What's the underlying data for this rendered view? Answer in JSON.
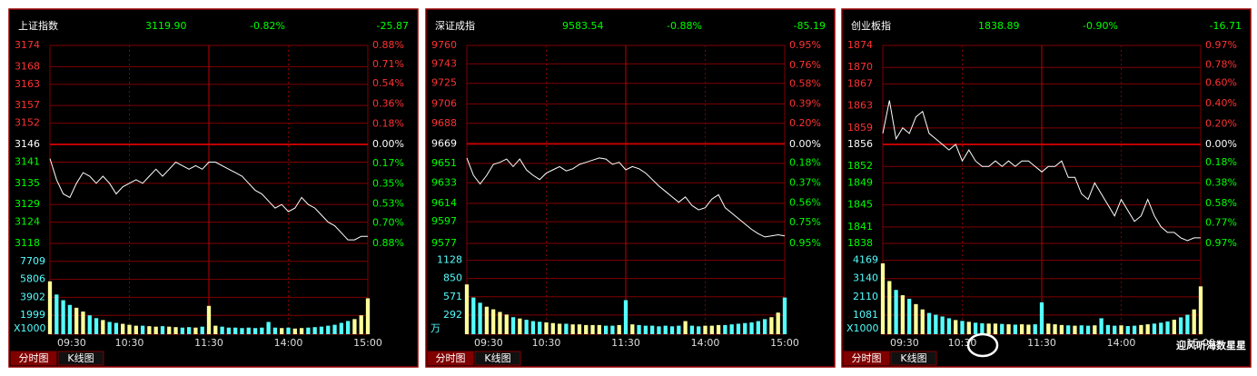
{
  "chart_data": [
    {
      "type": "line",
      "title": "上证指数",
      "price": "3119.90",
      "change_percent": "-0.82%",
      "change": "-25.87",
      "color": "#ffffff",
      "x": [
        0,
        5,
        10,
        15,
        20,
        25,
        30,
        35,
        40,
        45,
        50,
        55,
        60,
        65,
        70,
        75,
        80,
        85,
        90,
        95,
        100,
        105,
        110,
        115,
        120,
        125,
        130,
        135,
        140,
        145,
        150,
        155,
        160,
        165,
        170,
        175,
        180,
        185,
        190,
        195,
        200,
        205,
        210,
        215,
        220,
        225,
        230,
        235,
        240
      ],
      "values": [
        3142,
        3136,
        3132,
        3131,
        3135,
        3138,
        3137,
        3135,
        3137,
        3135,
        3132,
        3134,
        3135,
        3136,
        3135,
        3137,
        3139,
        3137,
        3139,
        3141,
        3140,
        3139,
        3140,
        3139,
        3141,
        3141,
        3140,
        3139,
        3138,
        3137,
        3135,
        3133,
        3132,
        3130,
        3128,
        3129,
        3127,
        3128,
        3131,
        3129,
        3128,
        3126,
        3124,
        3123,
        3121,
        3119,
        3119,
        3120,
        3120
      ],
      "xlim": [
        0,
        240
      ],
      "xticks": [
        {
          "value": 0,
          "label": "09:30"
        },
        {
          "value": 60,
          "label": "10:30"
        },
        {
          "value": 120,
          "label": "11:30"
        },
        {
          "value": 180,
          "label": "14:00"
        },
        {
          "value": 240,
          "label": "15:00"
        }
      ],
      "ylim": [
        3118,
        3174
      ],
      "yticks": [
        3174,
        3168,
        3163,
        3157,
        3152,
        3146,
        3141,
        3135,
        3129,
        3124,
        3118
      ],
      "y2lim": [
        -0.88,
        0.88
      ],
      "y2ticks": [
        {
          "value": 0.88,
          "label": "0.88%"
        },
        {
          "value": 0.71,
          "label": "0.71%"
        },
        {
          "value": 0.54,
          "label": "0.54%"
        },
        {
          "value": 0.36,
          "label": "0.36%"
        },
        {
          "value": 0.18,
          "label": "0.18%"
        },
        {
          "value": 0,
          "label": "0.00%"
        },
        {
          "value": -0.17,
          "label": "0.17%"
        },
        {
          "value": -0.35,
          "label": "0.35%"
        },
        {
          "value": -0.53,
          "label": "0.53%"
        },
        {
          "value": -0.7,
          "label": "0.70%"
        },
        {
          "value": -0.88,
          "label": "0.88%"
        }
      ],
      "volume": {
        "unit": "X1000",
        "ylim": [
          0,
          9613
        ],
        "yticks": [
          7709,
          5806,
          3902,
          1999
        ],
        "up_color": "#ffff99",
        "down_color": "#54ffff",
        "values": [
          5600,
          4200,
          3600,
          3100,
          2800,
          2400,
          2000,
          1700,
          1500,
          1300,
          1200,
          1100,
          1000,
          900,
          900,
          850,
          800,
          850,
          800,
          750,
          700,
          750,
          700,
          800,
          3000,
          900,
          800,
          700,
          700,
          650,
          700,
          650,
          700,
          1300,
          700,
          650,
          700,
          600,
          650,
          700,
          750,
          800,
          900,
          1000,
          1200,
          1400,
          1600,
          2000,
          3800
        ]
      },
      "tabs": [
        "分时图",
        "K线图"
      ]
    },
    {
      "type": "line",
      "title": "深证成指",
      "price": "9583.54",
      "change_percent": "-0.88%",
      "change": "-85.19",
      "color": "#ffffff",
      "x": [
        0,
        5,
        10,
        15,
        20,
        25,
        30,
        35,
        40,
        45,
        50,
        55,
        60,
        65,
        70,
        75,
        80,
        85,
        90,
        95,
        100,
        105,
        110,
        115,
        120,
        125,
        130,
        135,
        140,
        145,
        150,
        155,
        160,
        165,
        170,
        175,
        180,
        185,
        190,
        195,
        200,
        205,
        210,
        215,
        220,
        225,
        230,
        235,
        240
      ],
      "values": [
        9656,
        9640,
        9632,
        9640,
        9650,
        9652,
        9655,
        9648,
        9655,
        9645,
        9640,
        9636,
        9642,
        9645,
        9648,
        9644,
        9646,
        9650,
        9652,
        9654,
        9656,
        9655,
        9650,
        9652,
        9645,
        9648,
        9646,
        9642,
        9636,
        9630,
        9625,
        9620,
        9615,
        9620,
        9612,
        9608,
        9610,
        9618,
        9622,
        9610,
        9605,
        9600,
        9595,
        9590,
        9586,
        9583,
        9584,
        9585,
        9584
      ],
      "xlim": [
        0,
        240
      ],
      "xticks": [
        {
          "value": 0,
          "label": "09:30"
        },
        {
          "value": 60,
          "label": "10:30"
        },
        {
          "value": 120,
          "label": "11:30"
        },
        {
          "value": 180,
          "label": "14:00"
        },
        {
          "value": 240,
          "label": "15:00"
        }
      ],
      "ylim": [
        9577,
        9760
      ],
      "yticks": [
        9760,
        9743,
        9725,
        9706,
        9688,
        9669,
        9651,
        9633,
        9614,
        9597,
        9577
      ],
      "y2lim": [
        -0.95,
        0.95
      ],
      "y2ticks": [
        {
          "value": 0.95,
          "label": "0.95%"
        },
        {
          "value": 0.76,
          "label": "0.76%"
        },
        {
          "value": 0.58,
          "label": "0.58%"
        },
        {
          "value": 0.39,
          "label": "0.39%"
        },
        {
          "value": 0.2,
          "label": "0.20%"
        },
        {
          "value": 0,
          "label": "0.00%"
        },
        {
          "value": -0.18,
          "label": "0.18%"
        },
        {
          "value": -0.37,
          "label": "0.37%"
        },
        {
          "value": -0.56,
          "label": "0.56%"
        },
        {
          "value": -0.75,
          "label": "0.75%"
        },
        {
          "value": -0.95,
          "label": "0.95%"
        }
      ],
      "volume": {
        "unit": "万",
        "ylim": [
          0,
          1386
        ],
        "yticks": [
          1128,
          850,
          571,
          292
        ],
        "up_color": "#ffff99",
        "down_color": "#54ffff",
        "values": [
          760,
          560,
          480,
          420,
          380,
          340,
          300,
          260,
          240,
          220,
          200,
          190,
          180,
          170,
          160,
          160,
          150,
          150,
          140,
          140,
          140,
          130,
          130,
          140,
          520,
          150,
          140,
          130,
          130,
          120,
          130,
          120,
          130,
          200,
          130,
          120,
          130,
          130,
          140,
          140,
          150,
          160,
          170,
          180,
          200,
          230,
          260,
          330,
          560
        ]
      },
      "tabs": [
        "分时图",
        "K线图"
      ]
    },
    {
      "type": "line",
      "title": "创业板指",
      "price": "1838.89",
      "change_percent": "-0.90%",
      "change": "-16.71",
      "color": "#ffffff",
      "x": [
        0,
        5,
        10,
        15,
        20,
        25,
        30,
        35,
        40,
        45,
        50,
        55,
        60,
        65,
        70,
        75,
        80,
        85,
        90,
        95,
        100,
        105,
        110,
        115,
        120,
        125,
        130,
        135,
        140,
        145,
        150,
        155,
        160,
        165,
        170,
        175,
        180,
        185,
        190,
        195,
        200,
        205,
        210,
        215,
        220,
        225,
        230,
        235,
        240
      ],
      "values": [
        1858,
        1864,
        1857,
        1859,
        1858,
        1861,
        1862,
        1858,
        1857,
        1856,
        1855,
        1856,
        1853,
        1855,
        1853,
        1852,
        1852,
        1853,
        1852,
        1853,
        1852,
        1853,
        1853,
        1852,
        1851,
        1852,
        1852,
        1853,
        1850,
        1850,
        1847,
        1846,
        1849,
        1847,
        1845,
        1843,
        1846,
        1844,
        1842,
        1843,
        1846,
        1843,
        1841,
        1840,
        1840,
        1839,
        1838.5,
        1839,
        1839
      ],
      "xlim": [
        0,
        240
      ],
      "xticks": [
        {
          "value": 0,
          "label": "09:30"
        },
        {
          "value": 60,
          "label": "10:30"
        },
        {
          "value": 120,
          "label": "11:30"
        },
        {
          "value": 180,
          "label": "14:00"
        },
        {
          "value": 240,
          "label": "15:00"
        }
      ],
      "ylim": [
        1838,
        1874
      ],
      "yticks": [
        1874,
        1870,
        1867,
        1863,
        1859,
        1856,
        1852,
        1849,
        1845,
        1841,
        1838
      ],
      "y2lim": [
        -0.97,
        0.97
      ],
      "y2ticks": [
        {
          "value": 0.97,
          "label": "0.97%"
        },
        {
          "value": 0.78,
          "label": "0.78%"
        },
        {
          "value": 0.6,
          "label": "0.60%"
        },
        {
          "value": 0.4,
          "label": "0.40%"
        },
        {
          "value": 0.2,
          "label": "0.20%"
        },
        {
          "value": 0,
          "label": "0.00%"
        },
        {
          "value": -0.18,
          "label": "0.18%"
        },
        {
          "value": -0.38,
          "label": "0.38%"
        },
        {
          "value": -0.58,
          "label": "0.58%"
        },
        {
          "value": -0.77,
          "label": "0.77%"
        },
        {
          "value": -0.97,
          "label": "0.97%"
        }
      ],
      "volume": {
        "unit": "X1000",
        "ylim": [
          0,
          5126
        ],
        "yticks": [
          4169,
          3140,
          2110,
          1081
        ],
        "up_color": "#ffff99",
        "down_color": "#54ffff",
        "values": [
          4000,
          3000,
          2500,
          2200,
          2000,
          1700,
          1400,
          1200,
          1100,
          1000,
          900,
          800,
          750,
          700,
          650,
          620,
          600,
          600,
          580,
          560,
          540,
          560,
          540,
          560,
          1800,
          600,
          560,
          520,
          500,
          480,
          500,
          480,
          500,
          900,
          520,
          480,
          500,
          460,
          480,
          520,
          560,
          600,
          650,
          720,
          820,
          950,
          1100,
          1400,
          2700
        ]
      },
      "tabs": [
        "分时图",
        "K线图"
      ]
    }
  ],
  "watermark": "迎风听海数星星"
}
